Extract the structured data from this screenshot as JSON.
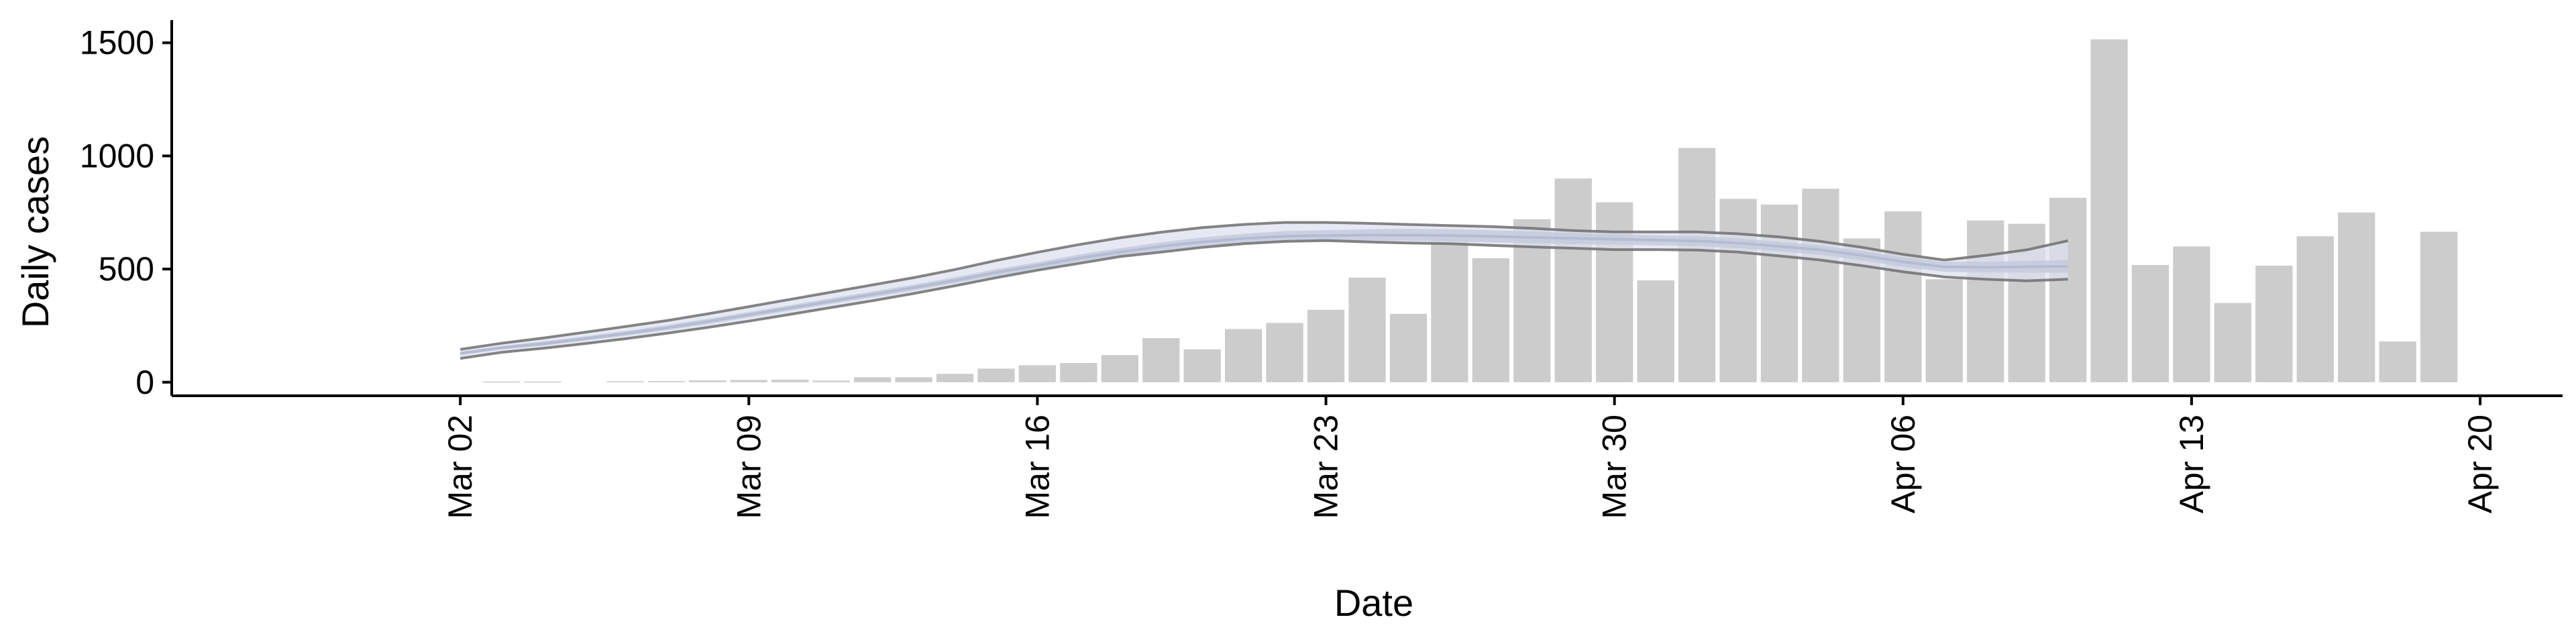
{
  "chart_data": {
    "type": "bar",
    "title": "",
    "xlabel": "Date",
    "ylabel": "Daily cases",
    "ylim": [
      -60,
      1600
    ],
    "xlim": [
      "2020-02-24",
      "2020-04-22"
    ],
    "y_ticks": [
      0,
      500,
      1000,
      1500
    ],
    "x_ticks": [
      {
        "date": "2020-03-02",
        "label": "Mar 02"
      },
      {
        "date": "2020-03-09",
        "label": "Mar 09"
      },
      {
        "date": "2020-03-16",
        "label": "Mar 16"
      },
      {
        "date": "2020-03-23",
        "label": "Mar 23"
      },
      {
        "date": "2020-03-30",
        "label": "Mar 30"
      },
      {
        "date": "2020-04-06",
        "label": "Apr 06"
      },
      {
        "date": "2020-04-13",
        "label": "Apr 13"
      },
      {
        "date": "2020-04-20",
        "label": "Apr 20"
      }
    ],
    "grid": false,
    "legend": "none",
    "colors": {
      "bars": "#cccccc",
      "band_outer": "#dde2ef",
      "band_inner": "#c3c9dc",
      "band_edges": "#6e6e6e",
      "axes": "#000000"
    },
    "series": [
      {
        "kind": "bar",
        "x": [
          "2020-03-03",
          "2020-03-04",
          "2020-03-06",
          "2020-03-07",
          "2020-03-08",
          "2020-03-09",
          "2020-03-10",
          "2020-03-11",
          "2020-03-12",
          "2020-03-13",
          "2020-03-14",
          "2020-03-15",
          "2020-03-16",
          "2020-03-17",
          "2020-03-18",
          "2020-03-19",
          "2020-03-20",
          "2020-03-21",
          "2020-03-22",
          "2020-03-23",
          "2020-03-24",
          "2020-03-25",
          "2020-03-26",
          "2020-03-27",
          "2020-03-28",
          "2020-03-29",
          "2020-03-30",
          "2020-03-31",
          "2020-04-01",
          "2020-04-02",
          "2020-04-03",
          "2020-04-04",
          "2020-04-05",
          "2020-04-06",
          "2020-04-07",
          "2020-04-08",
          "2020-04-09",
          "2020-04-10",
          "2020-04-11",
          "2020-04-12",
          "2020-04-13",
          "2020-04-14",
          "2020-04-15",
          "2020-04-16",
          "2020-04-17",
          "2020-04-18",
          "2020-04-19"
        ],
        "values": [
          3,
          3,
          4,
          5,
          8,
          10,
          11,
          7,
          22,
          22,
          37,
          60,
          75,
          85,
          120,
          195,
          145,
          235,
          262,
          320,
          462,
          302,
          635,
          548,
          720,
          900,
          795,
          450,
          1035,
          810,
          785,
          855,
          635,
          755,
          455,
          715,
          700,
          815,
          1515,
          518,
          600,
          350,
          515,
          645,
          750,
          180,
          665
        ]
      },
      {
        "kind": "band",
        "x": [
          "2020-03-02",
          "2020-03-03",
          "2020-03-04",
          "2020-03-05",
          "2020-03-06",
          "2020-03-07",
          "2020-03-08",
          "2020-03-09",
          "2020-03-10",
          "2020-03-11",
          "2020-03-12",
          "2020-03-13",
          "2020-03-14",
          "2020-03-15",
          "2020-03-16",
          "2020-03-17",
          "2020-03-18",
          "2020-03-19",
          "2020-03-20",
          "2020-03-21",
          "2020-03-22",
          "2020-03-23",
          "2020-03-24",
          "2020-03-25",
          "2020-03-26",
          "2020-03-27",
          "2020-03-28",
          "2020-03-29",
          "2020-03-30",
          "2020-03-31",
          "2020-04-01",
          "2020-04-02",
          "2020-04-03",
          "2020-04-04",
          "2020-04-05",
          "2020-04-06",
          "2020-04-07",
          "2020-04-08",
          "2020-04-09",
          "2020-04-10"
        ],
        "median": [
          127,
          152,
          170,
          192,
          215,
          240,
          268,
          298,
          328,
          358,
          388,
          418,
          450,
          485,
          515,
          548,
          575,
          600,
          620,
          635,
          645,
          648,
          650,
          650,
          648,
          645,
          640,
          636,
          632,
          628,
          624,
          615,
          600,
          585,
          560,
          532,
          510,
          508,
          510,
          512
        ],
        "upper_inner": [
          135,
          160,
          180,
          202,
          226,
          252,
          280,
          310,
          340,
          371,
          401,
          431,
          464,
          500,
          530,
          564,
          592,
          618,
          640,
          656,
          668,
          672,
          676,
          678,
          676,
          672,
          666,
          660,
          654,
          650,
          645,
          636,
          620,
          604,
          580,
          553,
          532,
          532,
          536,
          540
        ],
        "lower_inner": [
          120,
          145,
          161,
          183,
          205,
          230,
          256,
          286,
          316,
          346,
          375,
          405,
          437,
          470,
          500,
          532,
          558,
          583,
          602,
          616,
          624,
          626,
          626,
          625,
          622,
          618,
          614,
          610,
          608,
          605,
          601,
          592,
          578,
          563,
          538,
          510,
          488,
          485,
          484,
          484
        ],
        "upper_outer": [
          145,
          172,
          195,
          220,
          246,
          272,
          302,
          334,
          366,
          398,
          430,
          462,
          498,
          538,
          574,
          608,
          638,
          663,
          683,
          697,
          706,
          706,
          702,
          697,
          692,
          688,
          680,
          670,
          664,
          664,
          664,
          656,
          642,
          622,
          596,
          565,
          540,
          560,
          585,
          625
        ],
        "lower_outer": [
          105,
          132,
          150,
          170,
          192,
          216,
          242,
          270,
          300,
          330,
          360,
          392,
          426,
          462,
          495,
          525,
          555,
          575,
          596,
          612,
          622,
          626,
          620,
          615,
          612,
          605,
          598,
          592,
          586,
          586,
          584,
          575,
          558,
          540,
          515,
          488,
          465,
          455,
          448,
          455
        ]
      }
    ]
  }
}
